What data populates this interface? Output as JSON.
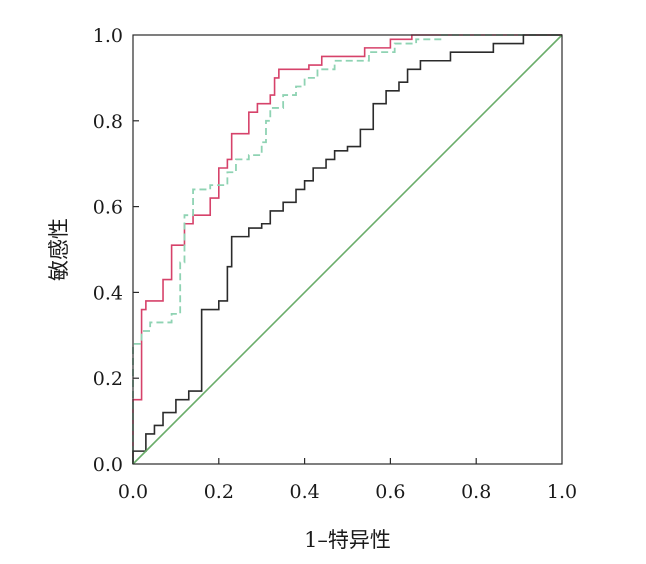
{
  "chart_data": {
    "type": "line",
    "title": "",
    "xlabel": "1–特异性",
    "ylabel": "敏感性",
    "xlim": [
      0,
      1
    ],
    "ylim": [
      0,
      1
    ],
    "x_ticks": [
      "0.0",
      "0.2",
      "0.4",
      "0.6",
      "0.8",
      "1.0"
    ],
    "y_ticks": [
      "0.0",
      "0.2",
      "0.4",
      "0.6",
      "0.8",
      "1.0"
    ],
    "grid": false,
    "legend": "none",
    "series": [
      {
        "color": "#d6426a",
        "style": "solid",
        "step": true,
        "points": [
          [
            0,
            0
          ],
          [
            0,
            0.15
          ],
          [
            0.02,
            0.15
          ],
          [
            0.02,
            0.36
          ],
          [
            0.03,
            0.36
          ],
          [
            0.03,
            0.38
          ],
          [
            0.07,
            0.38
          ],
          [
            0.07,
            0.43
          ],
          [
            0.09,
            0.43
          ],
          [
            0.09,
            0.51
          ],
          [
            0.12,
            0.51
          ],
          [
            0.12,
            0.56
          ],
          [
            0.14,
            0.56
          ],
          [
            0.14,
            0.58
          ],
          [
            0.18,
            0.58
          ],
          [
            0.18,
            0.62
          ],
          [
            0.2,
            0.62
          ],
          [
            0.2,
            0.69
          ],
          [
            0.22,
            0.69
          ],
          [
            0.22,
            0.71
          ],
          [
            0.23,
            0.71
          ],
          [
            0.23,
            0.77
          ],
          [
            0.27,
            0.77
          ],
          [
            0.27,
            0.82
          ],
          [
            0.29,
            0.82
          ],
          [
            0.29,
            0.84
          ],
          [
            0.32,
            0.84
          ],
          [
            0.32,
            0.86
          ],
          [
            0.33,
            0.86
          ],
          [
            0.33,
            0.9
          ],
          [
            0.34,
            0.9
          ],
          [
            0.34,
            0.92
          ],
          [
            0.41,
            0.92
          ],
          [
            0.41,
            0.93
          ],
          [
            0.44,
            0.93
          ],
          [
            0.44,
            0.95
          ],
          [
            0.54,
            0.95
          ],
          [
            0.54,
            0.97
          ],
          [
            0.6,
            0.97
          ],
          [
            0.6,
            0.99
          ],
          [
            0.65,
            0.99
          ],
          [
            0.65,
            1.0
          ],
          [
            1.0,
            1.0
          ]
        ]
      },
      {
        "color": "#8fd3b3",
        "style": "dashed",
        "step": true,
        "points": [
          [
            0,
            0
          ],
          [
            0,
            0.28
          ],
          [
            0.02,
            0.28
          ],
          [
            0.02,
            0.31
          ],
          [
            0.04,
            0.31
          ],
          [
            0.04,
            0.33
          ],
          [
            0.09,
            0.33
          ],
          [
            0.09,
            0.35
          ],
          [
            0.11,
            0.35
          ],
          [
            0.11,
            0.47
          ],
          [
            0.12,
            0.47
          ],
          [
            0.12,
            0.58
          ],
          [
            0.14,
            0.58
          ],
          [
            0.14,
            0.64
          ],
          [
            0.18,
            0.64
          ],
          [
            0.18,
            0.65
          ],
          [
            0.22,
            0.65
          ],
          [
            0.22,
            0.68
          ],
          [
            0.24,
            0.68
          ],
          [
            0.24,
            0.71
          ],
          [
            0.27,
            0.71
          ],
          [
            0.27,
            0.72
          ],
          [
            0.3,
            0.72
          ],
          [
            0.3,
            0.75
          ],
          [
            0.31,
            0.75
          ],
          [
            0.31,
            0.8
          ],
          [
            0.32,
            0.8
          ],
          [
            0.32,
            0.83
          ],
          [
            0.35,
            0.83
          ],
          [
            0.35,
            0.86
          ],
          [
            0.38,
            0.86
          ],
          [
            0.38,
            0.88
          ],
          [
            0.4,
            0.88
          ],
          [
            0.4,
            0.9
          ],
          [
            0.43,
            0.9
          ],
          [
            0.43,
            0.92
          ],
          [
            0.47,
            0.92
          ],
          [
            0.47,
            0.94
          ],
          [
            0.55,
            0.94
          ],
          [
            0.55,
            0.96
          ],
          [
            0.61,
            0.96
          ],
          [
            0.61,
            0.98
          ],
          [
            0.66,
            0.98
          ],
          [
            0.66,
            0.99
          ],
          [
            0.72,
            0.99
          ],
          [
            0.72,
            1.0
          ],
          [
            1.0,
            1.0
          ]
        ]
      },
      {
        "color": "#2b2b2b",
        "style": "solid",
        "step": true,
        "points": [
          [
            0,
            0
          ],
          [
            0,
            0.03
          ],
          [
            0.03,
            0.03
          ],
          [
            0.03,
            0.07
          ],
          [
            0.05,
            0.07
          ],
          [
            0.05,
            0.09
          ],
          [
            0.07,
            0.09
          ],
          [
            0.07,
            0.12
          ],
          [
            0.1,
            0.12
          ],
          [
            0.1,
            0.15
          ],
          [
            0.13,
            0.15
          ],
          [
            0.13,
            0.17
          ],
          [
            0.16,
            0.17
          ],
          [
            0.16,
            0.36
          ],
          [
            0.2,
            0.36
          ],
          [
            0.2,
            0.38
          ],
          [
            0.22,
            0.38
          ],
          [
            0.22,
            0.46
          ],
          [
            0.23,
            0.46
          ],
          [
            0.23,
            0.53
          ],
          [
            0.27,
            0.53
          ],
          [
            0.27,
            0.55
          ],
          [
            0.3,
            0.55
          ],
          [
            0.3,
            0.56
          ],
          [
            0.32,
            0.56
          ],
          [
            0.32,
            0.59
          ],
          [
            0.35,
            0.59
          ],
          [
            0.35,
            0.61
          ],
          [
            0.38,
            0.61
          ],
          [
            0.38,
            0.64
          ],
          [
            0.4,
            0.64
          ],
          [
            0.4,
            0.66
          ],
          [
            0.42,
            0.66
          ],
          [
            0.42,
            0.69
          ],
          [
            0.45,
            0.69
          ],
          [
            0.45,
            0.71
          ],
          [
            0.47,
            0.71
          ],
          [
            0.47,
            0.73
          ],
          [
            0.5,
            0.73
          ],
          [
            0.5,
            0.74
          ],
          [
            0.53,
            0.74
          ],
          [
            0.53,
            0.78
          ],
          [
            0.56,
            0.78
          ],
          [
            0.56,
            0.84
          ],
          [
            0.59,
            0.84
          ],
          [
            0.59,
            0.87
          ],
          [
            0.62,
            0.87
          ],
          [
            0.62,
            0.89
          ],
          [
            0.64,
            0.89
          ],
          [
            0.64,
            0.92
          ],
          [
            0.67,
            0.92
          ],
          [
            0.67,
            0.94
          ],
          [
            0.74,
            0.94
          ],
          [
            0.74,
            0.96
          ],
          [
            0.84,
            0.96
          ],
          [
            0.84,
            0.98
          ],
          [
            0.91,
            0.98
          ],
          [
            0.91,
            1.0
          ],
          [
            1.0,
            1.0
          ]
        ]
      },
      {
        "color": "#6aad6a",
        "style": "solid",
        "step": false,
        "points": [
          [
            0,
            0
          ],
          [
            1,
            1
          ]
        ]
      }
    ]
  }
}
